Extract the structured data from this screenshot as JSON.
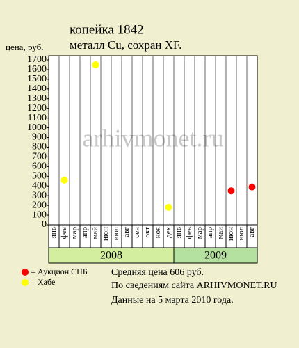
{
  "chart_data": {
    "type": "scatter",
    "title": "копейка 1842",
    "subtitle": "металл Cu, сохран XF.",
    "y_label": "цена, руб.",
    "watermark": "arhivmonet.ru",
    "groups": [
      {
        "year": "2008",
        "months": [
          "янв",
          "фев",
          "мар",
          "апр",
          "май",
          "июн",
          "июл",
          "авг",
          "сен",
          "окт",
          "ноя",
          "дек"
        ],
        "color": "#d4eea0"
      },
      {
        "year": "2009",
        "months": [
          "янв",
          "фев",
          "мар",
          "апр",
          "май",
          "июн",
          "июл",
          "авг"
        ],
        "color": "#b4e0a0"
      }
    ],
    "ylim": [
      0,
      1700
    ],
    "yticks": [
      0,
      100,
      200,
      300,
      400,
      500,
      600,
      700,
      800,
      900,
      1000,
      1100,
      1200,
      1300,
      1400,
      1500,
      1600,
      1700
    ],
    "series": [
      {
        "name": "– Аукцион.СПБ",
        "color": "#ff0000",
        "values": [
          null,
          null,
          null,
          null,
          null,
          null,
          null,
          null,
          null,
          null,
          null,
          null,
          null,
          null,
          null,
          null,
          null,
          350,
          null,
          390
        ]
      },
      {
        "name": "– Хабе",
        "color": "#ffff00",
        "values": [
          null,
          460,
          null,
          null,
          1650,
          null,
          null,
          null,
          null,
          null,
          null,
          180,
          null,
          null,
          null,
          null,
          null,
          null,
          null,
          null
        ]
      }
    ],
    "notes": [
      "Средняя цена 606 руб.",
      "По  сведениям сайта ARHIVMONET.RU",
      "Данные на 5 марта 2010 года."
    ]
  }
}
